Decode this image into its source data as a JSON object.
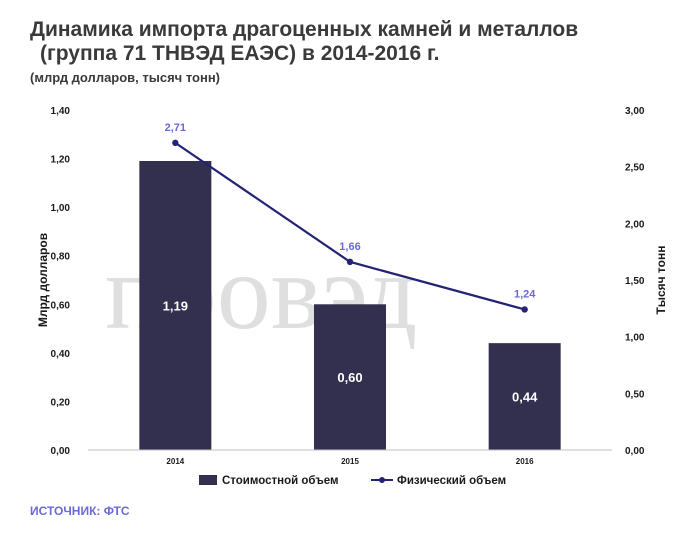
{
  "title_line1": "Динамика импорта драгоценных камней и металлов",
  "title_line2": "(группа 71 ТНВЭД ЕАЭС) в 2014-2016 г.",
  "subtitle": "(млрд долларов, тысяч тонн)",
  "source": "ИСТОЧНИК: ФТС",
  "watermark": "провэд",
  "colors": {
    "bar": "#32304e",
    "line": "#232376",
    "line_label": "#6b69d6",
    "bar_label": "#ffffff",
    "text": "#1a1a1a"
  },
  "chart_data": {
    "type": "bar",
    "categories": [
      "2014",
      "2015",
      "2016"
    ],
    "series": [
      {
        "name": "Стоимостной объем",
        "type": "bar",
        "axis": "left",
        "values": [
          1.19,
          0.6,
          0.44
        ],
        "labels": [
          "1,19",
          "0,60",
          "0,44"
        ]
      },
      {
        "name": "Физический объем",
        "type": "line",
        "axis": "right",
        "values": [
          2.71,
          1.66,
          1.24
        ],
        "labels": [
          "2,71",
          "1,66",
          "1,24"
        ]
      }
    ],
    "ylabel": "Млрд долларов",
    "ylabel_right": "Тысяч тонн",
    "ylim": [
      0,
      1.4
    ],
    "ylim_right": [
      0,
      3.0
    ],
    "yticks": [
      "0,00",
      "0,20",
      "0,40",
      "0,60",
      "0,80",
      "1,00",
      "1,20",
      "1,40"
    ],
    "yticks_right": [
      "0,00",
      "0,50",
      "1,00",
      "1,50",
      "2,00",
      "2,50",
      "3,00"
    ],
    "grid": false,
    "legend_position": "bottom"
  }
}
